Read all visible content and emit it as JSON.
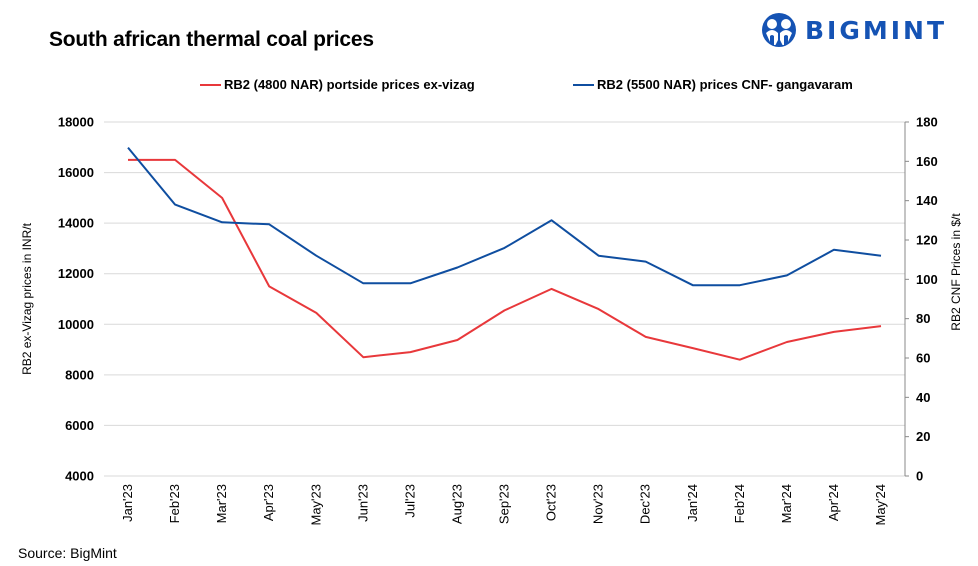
{
  "header": {
    "title": "South african thermal coal prices",
    "logo_text": "BIGMINT"
  },
  "source": "Source: BigMint",
  "colors": {
    "red_series": "#e8383b",
    "blue_series": "#0f4ea0",
    "logo": "#1553b4",
    "grid": "#d9d9d9"
  },
  "chart_data": {
    "type": "line",
    "title": "South african thermal coal prices",
    "categories": [
      "Jan'23",
      "Feb'23",
      "Mar'23",
      "Apr'23",
      "May'23",
      "Jun'23",
      "Jul'23",
      "Aug'23",
      "Sep'23",
      "Oct'23",
      "Nov'23",
      "Dec'23",
      "Jan'24",
      "Feb'24",
      "Mar'24",
      "Apr'24",
      "May'24"
    ],
    "series": [
      {
        "name": "RB2 (4800 NAR) portside prices ex-vizag",
        "axis": "left",
        "color": "#e8383b",
        "values": [
          16500,
          16500,
          15000,
          11500,
          10450,
          8700,
          8900,
          9380,
          10550,
          11400,
          10600,
          9500,
          9060,
          8600,
          9300,
          9700,
          9930
        ]
      },
      {
        "name": "RB2 (5500 NAR) prices CNF- gangavaram",
        "axis": "right",
        "color": "#0f4ea0",
        "values": [
          167,
          138,
          129,
          128,
          112,
          98,
          98,
          106,
          116,
          130,
          112,
          109,
          97,
          97,
          102,
          115,
          112
        ]
      }
    ],
    "ylabel_left": "RB2 ex-Vizag  prices in INR/t",
    "ylabel_right": "RB2 CNF Prices in $/t",
    "ylim_left": [
      4000,
      18000
    ],
    "yticks_left": [
      4000,
      6000,
      8000,
      10000,
      12000,
      14000,
      16000,
      18000
    ],
    "ylim_right": [
      0,
      180
    ],
    "yticks_right": [
      0,
      20,
      40,
      60,
      80,
      100,
      120,
      140,
      160,
      180
    ],
    "grid": true,
    "legend": "top"
  }
}
